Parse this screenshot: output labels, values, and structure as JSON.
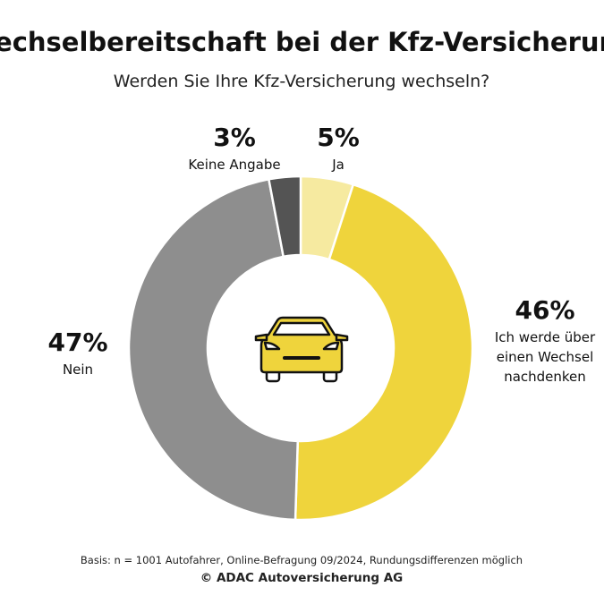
{
  "chart_data": {
    "type": "pie",
    "donut": true,
    "title": "Wechselbereitschaft bei der Kfz-Versicherung",
    "subtitle": "Werden Sie Ihre Kfz-Versicherung wechseln?",
    "categories": [
      "Ja",
      "Ich werde über einen Wechsel nachdenken",
      "Nein",
      "Keine Angabe"
    ],
    "values": [
      5,
      46,
      47,
      3
    ],
    "value_labels": [
      "5%",
      "46%",
      "47%",
      "3%"
    ],
    "colors": [
      "#f6eaa0",
      "#efd43c",
      "#8e8e8e",
      "#545454"
    ],
    "source": "Basis: n = 1001 Autofahrer, Online-Befragung 09/2024, Rundungsdifferenzen möglich",
    "copyright": "© ADAC Autoversicherung AG"
  }
}
